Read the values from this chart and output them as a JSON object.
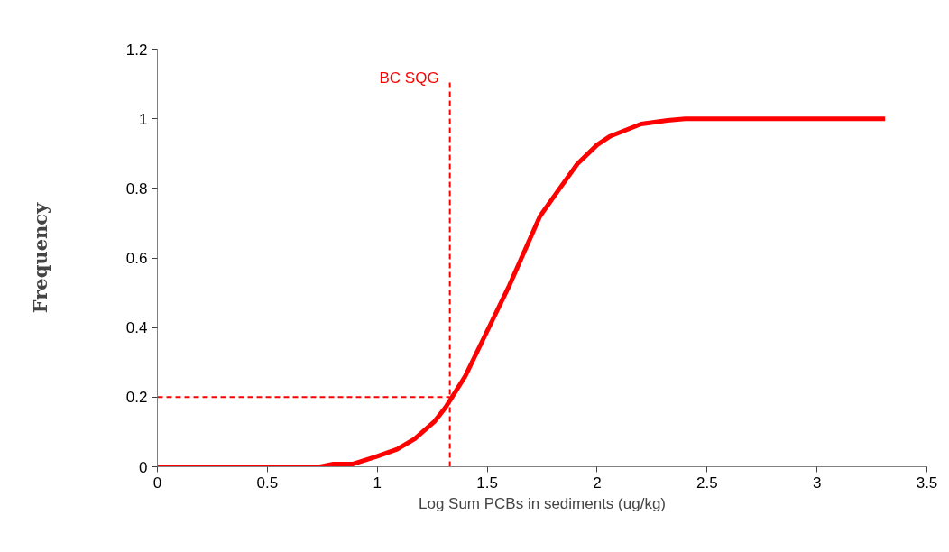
{
  "chart_data": {
    "type": "line",
    "xlabel": "Log Sum PCBs in sediments (ug/kg)",
    "ylabel": "Frequency",
    "xlim": [
      0,
      3.5
    ],
    "xticks": [
      0,
      0.5,
      1,
      1.5,
      2,
      2.5,
      3,
      3.5
    ],
    "ylim": [
      0,
      1.2
    ],
    "yticks": [
      0,
      0.2,
      0.4,
      0.6,
      0.8,
      1,
      1.2
    ],
    "grid": false,
    "marker": "none",
    "line_style": "solid",
    "series": [
      {
        "color": "#ff0000",
        "x": [
          0,
          0.74,
          0.8,
          0.89,
          1.0,
          1.09,
          1.17,
          1.26,
          1.31,
          1.34,
          1.4,
          1.5,
          1.6,
          1.74,
          1.83,
          1.91,
          2.0,
          2.06,
          2.2,
          2.32,
          2.4,
          3.31
        ],
        "values": [
          0,
          0,
          0.008,
          0.008,
          0.03,
          0.05,
          0.08,
          0.13,
          0.17,
          0.2,
          0.26,
          0.39,
          0.52,
          0.72,
          0.8,
          0.87,
          0.925,
          0.95,
          0.985,
          0.995,
          1.0,
          1.0
        ]
      }
    ],
    "ref_lines": [
      {
        "axis": "x",
        "value": 1.33,
        "label": "BC SQG",
        "color": "#ff0000",
        "line_style": "dashed"
      },
      {
        "axis": "y",
        "value": 0.2,
        "label": null,
        "color": "#ff0000",
        "line_style": "dashed"
      }
    ]
  }
}
